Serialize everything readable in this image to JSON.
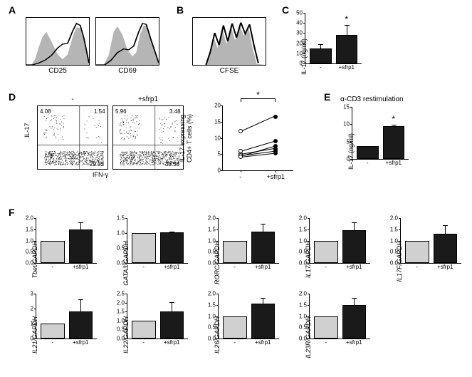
{
  "colors": {
    "black": "#000000",
    "white": "#ffffff",
    "gray_fill": "#b5b5b5",
    "light_gray": "#c0c0c0",
    "bar_dark": "#1a1a1a",
    "bar_light": "#d0d0d0"
  },
  "panel_letters": {
    "A": "A",
    "B": "B",
    "C": "C",
    "D": "D",
    "E": "E",
    "F": "F"
  },
  "A": {
    "hist1_label": "CD25",
    "hist2_label": "CD69"
  },
  "B": {
    "hist_label": "CFSE"
  },
  "C": {
    "ylabel": "IL-17 (ng/ml)",
    "ylim": [
      0,
      50
    ],
    "ytick_step": 10,
    "categories": [
      "-",
      "+sfrp1"
    ],
    "values": [
      15,
      28
    ],
    "errors": [
      5,
      11
    ],
    "bar_colors": [
      "#1a1a1a",
      "#1a1a1a"
    ],
    "star": "*"
  },
  "D": {
    "titles": [
      "-",
      "+sfrp1"
    ],
    "il17_axis": "IL-17",
    "ifn_axis": "IFN-γ",
    "facs1_quadrants": {
      "UL": "4.08",
      "UR": "1.54",
      "LR": "29.92"
    },
    "facs2_quadrants": {
      "UL": "5.96",
      "UR": "3.48",
      "LR": "38.36"
    },
    "pair_plot": {
      "ylabel": "IL-17 expressing\nCD4+ T cells (%)",
      "ylim": [
        0,
        20
      ],
      "ytick_step": 5,
      "xlabels": [
        "-",
        "+sfrp1"
      ],
      "pairs": [
        {
          "a": 12.0,
          "b": 16.5,
          "fill_b": "#000000",
          "fill_a": "#ffffff"
        },
        {
          "a": 6.0,
          "b": 9.0,
          "fill_b": "#000000",
          "fill_a": "#ffffff"
        },
        {
          "a": 4.5,
          "b": 7.5,
          "fill_b": "#000000",
          "fill_a": "#ffffff"
        },
        {
          "a": 5.0,
          "b": 6.7,
          "fill_b": "#000000",
          "fill_a": "#ffffff"
        },
        {
          "a": 4.7,
          "b": 6.0,
          "fill_b": "#000000",
          "fill_a": "#ffffff"
        },
        {
          "a": 4.2,
          "b": 5.3,
          "fill_b": "#000000",
          "fill_a": "#ffffff"
        }
      ],
      "star": "*"
    }
  },
  "E": {
    "title": "α-CD3 restimulation",
    "ylabel": "IL-17 (ng/ml)",
    "ylim": [
      0,
      15
    ],
    "ytick_step": 5,
    "categories": [
      "-",
      "+sfrp1"
    ],
    "values": [
      3.6,
      9.4
    ],
    "errors": [
      0.4,
      0.6
    ],
    "bar_colors": [
      "#1a1a1a",
      "#1a1a1a"
    ],
    "star": "*"
  },
  "F": {
    "shared_categories": [
      "-",
      "+sfrp1"
    ],
    "shared_bar_colors": [
      "#d0d0d0",
      "#1a1a1a"
    ],
    "charts": [
      {
        "ylabel": "Tbet/GAPDH",
        "ylim": [
          0,
          2.0
        ],
        "ytick_step": 0.5,
        "values": [
          1.0,
          1.5
        ],
        "errors": [
          0,
          0.35
        ]
      },
      {
        "ylabel": "GATA3/GAPDH",
        "ylim": [
          0,
          1.5
        ],
        "ytick_step": 0.5,
        "values": [
          1.0,
          1.02
        ],
        "errors": [
          0,
          0.06
        ]
      },
      {
        "ylabel": "RORC/GAPDH",
        "ylim": [
          0,
          2.0
        ],
        "ytick_step": 0.5,
        "values": [
          1.0,
          1.4
        ],
        "errors": [
          0,
          0.4
        ]
      },
      {
        "ylabel": "IL17/GAPDH",
        "ylim": [
          0,
          2.0
        ],
        "ytick_step": 0.5,
        "values": [
          1.0,
          1.45
        ],
        "errors": [
          0,
          0.4
        ]
      },
      {
        "ylabel": "IL17F/GAPDH",
        "ylim": [
          0,
          2.0
        ],
        "ytick_step": 0.5,
        "values": [
          1.0,
          1.3
        ],
        "errors": [
          0,
          0.45
        ]
      },
      {
        "ylabel": "IL21/GAPDH",
        "ylim": [
          0,
          3.0
        ],
        "ytick_step": 1.0,
        "values": [
          1.0,
          1.8
        ],
        "errors": [
          0,
          0.9
        ]
      },
      {
        "ylabel": "IL22/GAPDH",
        "ylim": [
          0,
          2.5
        ],
        "ytick_step": 0.5,
        "values": [
          1.0,
          1.5
        ],
        "errors": [
          0,
          0.6
        ]
      },
      {
        "ylabel": "IL26/GAPDH",
        "ylim": [
          0,
          2.0
        ],
        "ytick_step": 0.5,
        "values": [
          1.0,
          1.55
        ],
        "errors": [
          0,
          0.3
        ]
      },
      {
        "ylabel": "IL23R/GAPDH",
        "ylim": [
          0,
          2.0
        ],
        "ytick_step": 0.5,
        "values": [
          1.0,
          1.5
        ],
        "errors": [
          0,
          0.35
        ]
      }
    ]
  }
}
